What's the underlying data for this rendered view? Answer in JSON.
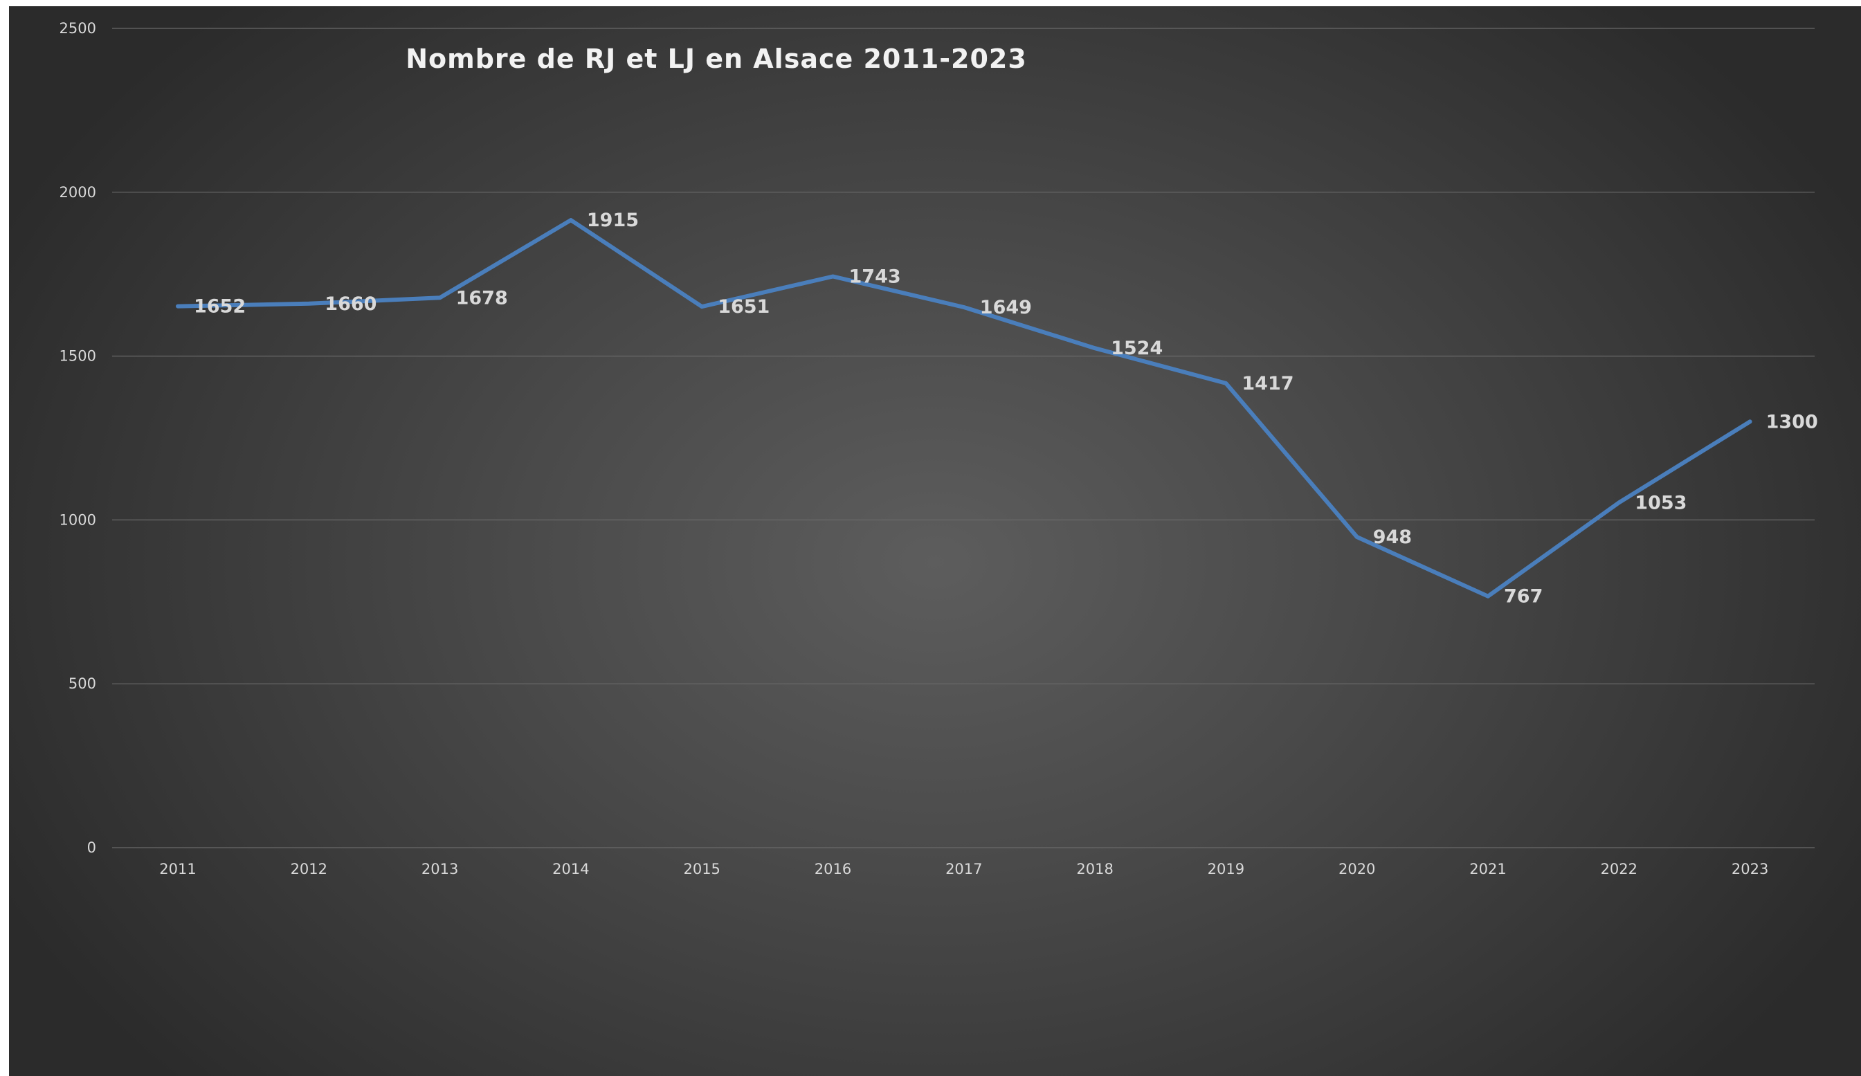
{
  "chart_data": {
    "type": "line",
    "title": "Nombre de RJ et LJ en Alsace 2011-2023",
    "categories": [
      "2011",
      "2012",
      "2013",
      "2014",
      "2015",
      "2016",
      "2017",
      "2018",
      "2019",
      "2020",
      "2021",
      "2022",
      "2023"
    ],
    "series": [
      {
        "values": [
          1652,
          1660,
          1678,
          1915,
          1651,
          1743,
          1649,
          1524,
          1417,
          948,
          767,
          1053,
          1300
        ],
        "color": "#4a7ebb"
      }
    ],
    "data_labels": [
      "1652",
      "1660",
      "1678",
      "1915",
      "1651",
      "1743",
      "1649",
      "1524",
      "1417",
      "948",
      "767",
      "1053",
      "1300"
    ],
    "y_ticks": [
      "0",
      "500",
      "1000",
      "1500",
      "2000",
      "2500"
    ],
    "ylim": [
      0,
      2500
    ],
    "grid": true,
    "legend": false
  }
}
